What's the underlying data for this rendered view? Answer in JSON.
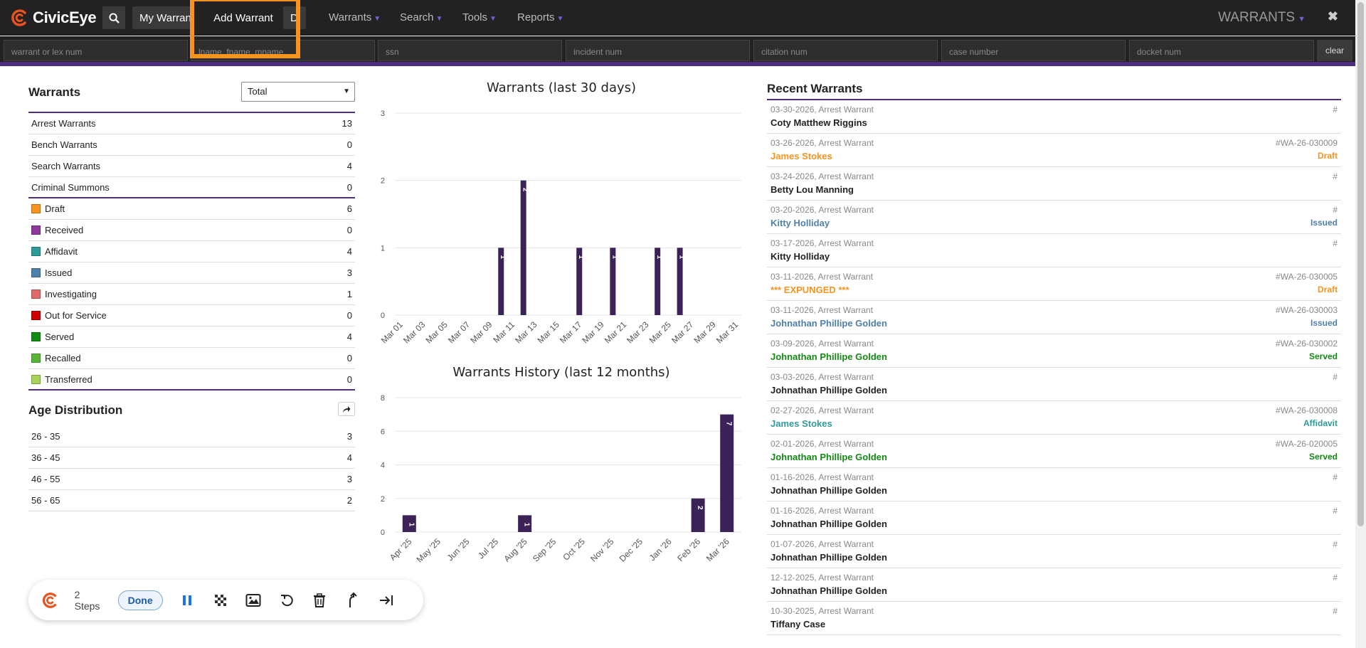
{
  "app": {
    "name": "CivicEye",
    "module": "WARRANTS",
    "close": "✖"
  },
  "toolbar": {
    "my_warrants": "My Warrants",
    "add_warrant": "Add Warrant",
    "doc_icon": "D"
  },
  "nav": [
    {
      "label": "Warrants"
    },
    {
      "label": "Search"
    },
    {
      "label": "Tools"
    },
    {
      "label": "Reports"
    }
  ],
  "search_fields": {
    "warrant": "warrant or lex num",
    "name": "lname, fname, mname",
    "ssn": "ssn",
    "incident": "incident num",
    "citation": "citation num",
    "case": "case number",
    "docket": "docket num",
    "clear": "clear"
  },
  "warrants_panel": {
    "title": "Warrants",
    "filter": "Total",
    "types": [
      {
        "label": "Arrest Warrants",
        "count": "13"
      },
      {
        "label": "Bench Warrants",
        "count": "0"
      },
      {
        "label": "Search Warrants",
        "count": "4"
      },
      {
        "label": "Criminal Summons",
        "count": "0"
      }
    ],
    "statuses": [
      {
        "label": "Draft",
        "count": "6",
        "color": "#f7931e"
      },
      {
        "label": "Received",
        "count": "0",
        "color": "#8e3a9d"
      },
      {
        "label": "Affidavit",
        "count": "4",
        "color": "#2e9a9a"
      },
      {
        "label": "Issued",
        "count": "3",
        "color": "#4f7fab"
      },
      {
        "label": "Investigating",
        "count": "1",
        "color": "#e06a6a"
      },
      {
        "label": "Out for Service",
        "count": "0",
        "color": "#cc0000"
      },
      {
        "label": "Served",
        "count": "4",
        "color": "#138a13"
      },
      {
        "label": "Recalled",
        "count": "0",
        "color": "#58b53a"
      },
      {
        "label": "Transferred",
        "count": "0",
        "color": "#a8d35a"
      }
    ]
  },
  "age_panel": {
    "title": "Age Distribution",
    "rows": [
      {
        "label": "26 - 35",
        "count": "3"
      },
      {
        "label": "36 - 45",
        "count": "4"
      },
      {
        "label": "46 - 55",
        "count": "3"
      },
      {
        "label": "56 - 65",
        "count": "2"
      }
    ]
  },
  "chart_data": [
    {
      "type": "bar",
      "title": "Warrants (last 30 days)",
      "categories": [
        "Mar 01",
        "Mar 02",
        "Mar 03",
        "Mar 04",
        "Mar 05",
        "Mar 06",
        "Mar 07",
        "Mar 08",
        "Mar 09",
        "Mar 10",
        "Mar 11",
        "Mar 12",
        "Mar 13",
        "Mar 14",
        "Mar 15",
        "Mar 16",
        "Mar 17",
        "Mar 18",
        "Mar 19",
        "Mar 20",
        "Mar 21",
        "Mar 22",
        "Mar 23",
        "Mar 24",
        "Mar 25",
        "Mar 26",
        "Mar 27",
        "Mar 28",
        "Mar 29",
        "Mar 30",
        "Mar 31"
      ],
      "tick_labels": [
        "Mar 01",
        "Mar 03",
        "Mar 05",
        "Mar 07",
        "Mar 09",
        "Mar 11",
        "Mar 13",
        "Mar 15",
        "Mar 17",
        "Mar 19",
        "Mar 21",
        "Mar 23",
        "Mar 25",
        "Mar 27",
        "Mar 29",
        "Mar 31"
      ],
      "values": [
        0,
        0,
        0,
        0,
        0,
        0,
        0,
        0,
        0,
        1,
        0,
        2,
        0,
        0,
        0,
        0,
        1,
        0,
        0,
        1,
        0,
        0,
        0,
        1,
        0,
        1,
        0,
        0,
        0,
        0,
        0
      ],
      "ylim": [
        0,
        3
      ],
      "yticks": [
        0,
        1,
        2,
        3
      ],
      "grid": true,
      "bar_color": "#3b2358"
    },
    {
      "type": "bar",
      "title": "Warrants History (last 12 months)",
      "categories": [
        "Apr '25",
        "May '25",
        "Jun '25",
        "Jul '25",
        "Aug '25",
        "Sep '25",
        "Oct '25",
        "Nov '25",
        "Dec '25",
        "Jan '26",
        "Feb '26",
        "Mar '26"
      ],
      "tick_labels": [
        "Apr '25",
        "May '25",
        "Jun '25",
        "Jul '25",
        "Aug '25",
        "Sep '25",
        "Oct '25",
        "Nov '25",
        "Dec '25",
        "Jan '26",
        "Feb '26",
        "Mar '26"
      ],
      "values": [
        1,
        0,
        0,
        0,
        1,
        0,
        0,
        0,
        0,
        0,
        2,
        7
      ],
      "ylim": [
        0,
        8
      ],
      "yticks": [
        0,
        2,
        4,
        6,
        8
      ],
      "grid": true,
      "bar_color": "#3b2358"
    }
  ],
  "recent": {
    "title": "Recent Warrants",
    "items": [
      {
        "meta": "03-30-2026, Arrest Warrant",
        "name": "Coty Matthew Riggins",
        "num": "#",
        "status": "",
        "color": "#222222"
      },
      {
        "meta": "03-26-2026, Arrest Warrant",
        "name": "James Stokes",
        "num": "#WA-26-030009",
        "status": "Draft",
        "color": "#f7931e"
      },
      {
        "meta": "03-24-2026, Arrest Warrant",
        "name": "Betty Lou Manning",
        "num": "#",
        "status": "",
        "color": "#222222"
      },
      {
        "meta": "03-20-2026, Arrest Warrant",
        "name": "Kitty Holliday",
        "num": "#",
        "status": "Issued",
        "color": "#4f7fab"
      },
      {
        "meta": "03-17-2026, Arrest Warrant",
        "name": "Kitty Holliday",
        "num": "#",
        "status": "",
        "color": "#222222"
      },
      {
        "meta": "03-11-2026, Arrest Warrant",
        "name": "*** EXPUNGED ***",
        "num": "#WA-26-030005",
        "status": "Draft",
        "color": "#f7931e"
      },
      {
        "meta": "03-11-2026, Arrest Warrant",
        "name": "Johnathan Phillipe Golden",
        "num": "#WA-26-030003",
        "status": "Issued",
        "color": "#4f7fab"
      },
      {
        "meta": "03-09-2026, Arrest Warrant",
        "name": "Johnathan Phillipe Golden",
        "num": "#WA-26-030002",
        "status": "Served",
        "color": "#138a13"
      },
      {
        "meta": "03-03-2026, Arrest Warrant",
        "name": "Johnathan Phillipe Golden",
        "num": "#",
        "status": "",
        "color": "#222222"
      },
      {
        "meta": "02-27-2026, Arrest Warrant",
        "name": "James Stokes",
        "num": "#WA-26-030008",
        "status": "Affidavit",
        "color": "#2e9a9a"
      },
      {
        "meta": "02-01-2026, Arrest Warrant",
        "name": "Johnathan Phillipe Golden",
        "num": "#WA-26-020005",
        "status": "Served",
        "color": "#138a13"
      },
      {
        "meta": "01-16-2026, Arrest Warrant",
        "name": "Johnathan Phillipe Golden",
        "num": "#",
        "status": "",
        "color": "#222222"
      },
      {
        "meta": "01-16-2026, Arrest Warrant",
        "name": "Johnathan Phillipe Golden",
        "num": "#",
        "status": "",
        "color": "#222222"
      },
      {
        "meta": "01-07-2026, Arrest Warrant",
        "name": "Johnathan Phillipe Golden",
        "num": "#",
        "status": "",
        "color": "#222222"
      },
      {
        "meta": "12-12-2025, Arrest Warrant",
        "name": "Johnathan Phillipe Golden",
        "num": "#",
        "status": "",
        "color": "#222222"
      },
      {
        "meta": "10-30-2025, Arrest Warrant",
        "name": "Tiffany Case",
        "num": "#",
        "status": "",
        "color": "#222222"
      }
    ]
  },
  "recorder": {
    "steps": "2 Steps",
    "done": "Done"
  },
  "colors": {
    "accent": "#4b2e83",
    "highlight": "#f7931e",
    "topbar": "#222222"
  }
}
